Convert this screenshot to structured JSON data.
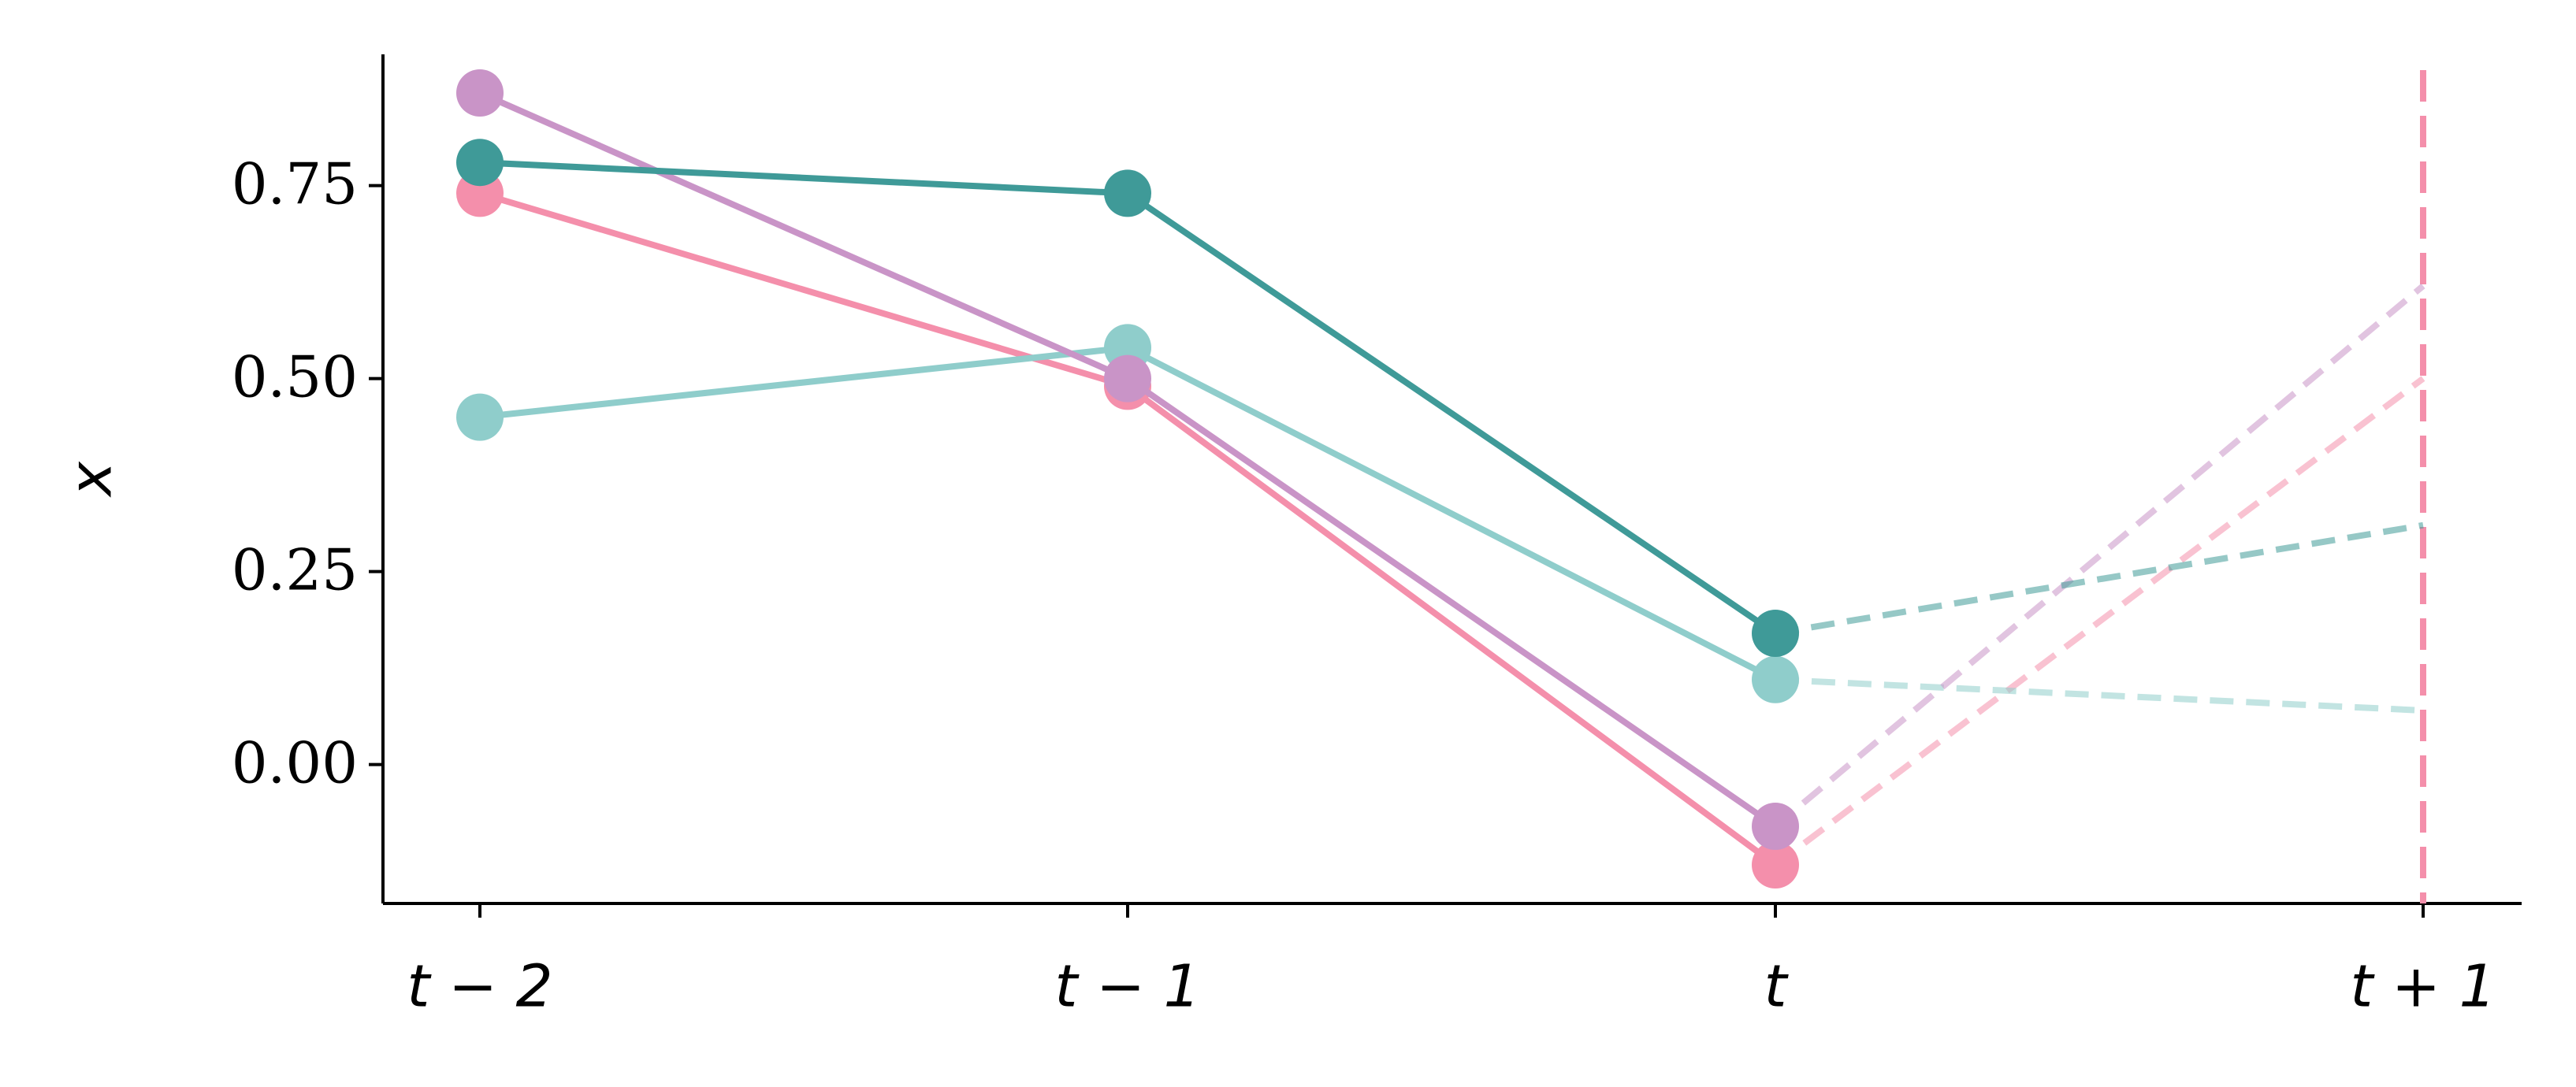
{
  "chart_data": {
    "type": "line",
    "y_label": "x",
    "categories": [
      "t − 2",
      "t − 1",
      "t",
      "t + 1"
    ],
    "forecast_index": 3,
    "forecast_marker_color": "#f48fab",
    "series": [
      {
        "color": "#f48fab",
        "values": [
          0.74,
          0.49,
          -0.13,
          0.5
        ]
      },
      {
        "color": "#8fcdcb",
        "values": [
          0.45,
          0.54,
          0.11,
          0.07
        ]
      },
      {
        "color": "#c994c7",
        "values": [
          0.87,
          0.5,
          -0.08,
          0.62
        ]
      },
      {
        "color": "#3f9a98",
        "values": [
          0.78,
          0.74,
          0.17,
          0.31
        ]
      }
    ],
    "ylim": [
      -0.18,
      0.92
    ],
    "yticks": [
      {
        "value": 0,
        "label": "0.00"
      },
      {
        "value": 0.25,
        "label": "0.25"
      },
      {
        "value": 0.5,
        "label": "0.50"
      },
      {
        "value": 0.75,
        "label": "0.75"
      }
    ]
  }
}
